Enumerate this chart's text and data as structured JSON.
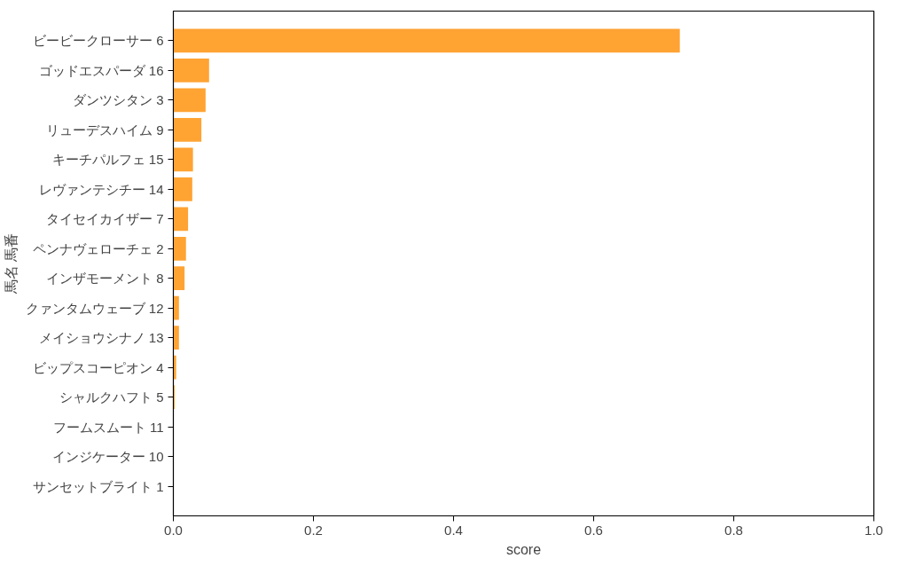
{
  "chart_data": {
    "type": "bar",
    "orientation": "horizontal",
    "xlabel": "score",
    "ylabel": "馬名 馬番",
    "categories": [
      "ビービークローサー 6",
      "ゴッドエスパーダ 16",
      "ダンツシタン 3",
      "リューデスハイム 9",
      "キーチパルフェ 15",
      "レヴァンテシチー 14",
      "タイセイカイザー 7",
      "ペンナヴェローチェ 2",
      "インザモーメント 8",
      "クァンタムウェーブ 12",
      "メイショウシナノ 13",
      "ビップスコーピオン 4",
      "シャルクハフト 5",
      "フームスムート 11",
      "インジケーター 10",
      "サンセットブライト 1"
    ],
    "values": [
      0.723,
      0.051,
      0.046,
      0.04,
      0.028,
      0.027,
      0.021,
      0.018,
      0.016,
      0.008,
      0.008,
      0.004,
      0.002,
      0,
      0,
      0
    ],
    "color": "#ffa333",
    "xlim": [
      0,
      1
    ],
    "xticks": [
      {
        "value": 0,
        "label": "0.0"
      },
      0.2,
      0.4,
      0.6,
      0.8,
      {
        "value": 1,
        "label": "1.0"
      }
    ],
    "grid": false
  }
}
